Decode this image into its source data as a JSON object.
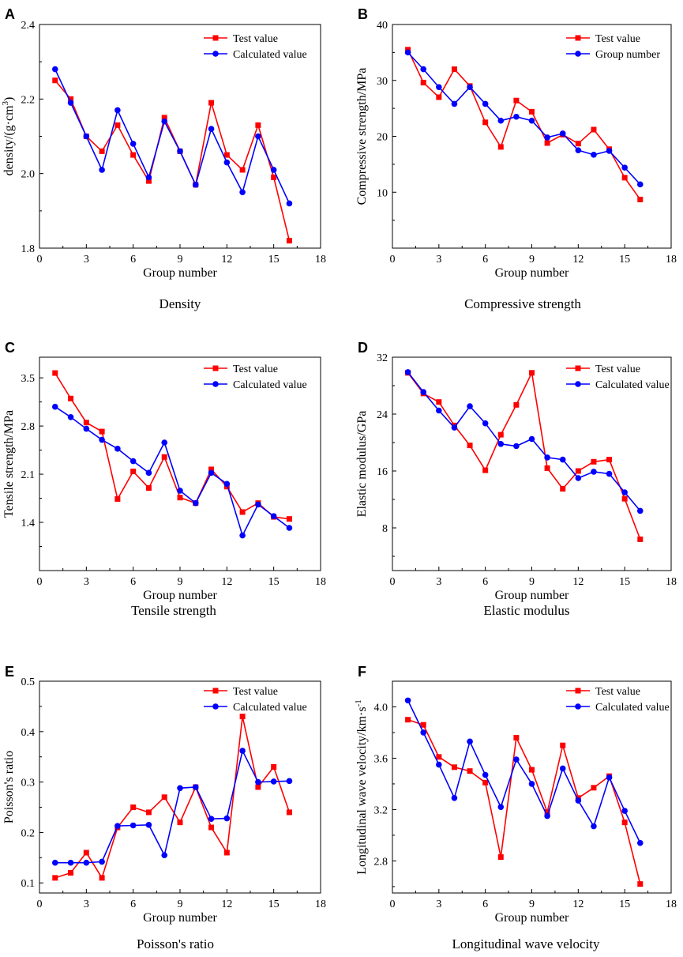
{
  "chart_data": [
    {
      "type": "line",
      "panel": "A",
      "caption": "Density",
      "xlabel": "Group number",
      "ylabel": "density/(g·cm",
      "ylabel_sup": "3",
      "ylabel_end": ")",
      "xlim": [
        0,
        18
      ],
      "ylim": [
        1.8,
        2.4
      ],
      "xticks": [
        0,
        3,
        6,
        9,
        12,
        15,
        18
      ],
      "yticks": [
        1.8,
        2.0,
        2.2,
        2.4
      ],
      "yticklabels": [
        "1.8",
        "2.0",
        "2.2",
        "2.4"
      ],
      "x": [
        1,
        2,
        3,
        4,
        5,
        6,
        7,
        8,
        9,
        10,
        11,
        12,
        13,
        14,
        15,
        16
      ],
      "series": [
        {
          "name": "Test value",
          "color": "#ff0000",
          "marker": "square",
          "values": [
            2.25,
            2.2,
            2.1,
            2.06,
            2.13,
            2.05,
            1.98,
            2.15,
            2.06,
            1.97,
            2.19,
            2.05,
            2.01,
            2.13,
            1.99,
            1.82
          ]
        },
        {
          "name": "Calculated value",
          "color": "#0000ff",
          "marker": "circle",
          "values": [
            2.28,
            2.19,
            2.1,
            2.01,
            2.17,
            2.08,
            1.99,
            2.14,
            2.06,
            1.97,
            2.12,
            2.03,
            1.95,
            2.1,
            2.01,
            1.92
          ]
        }
      ]
    },
    {
      "type": "line",
      "panel": "B",
      "caption": "Compressive strength",
      "xlabel": "Group number",
      "ylabel": "Compressive strength/MPa",
      "ylabel_sup": "",
      "ylabel_end": "",
      "xlim": [
        0,
        18
      ],
      "ylim": [
        0,
        40
      ],
      "xticks": [
        0,
        3,
        6,
        9,
        12,
        15,
        18
      ],
      "yticks": [
        10,
        20,
        30,
        40
      ],
      "yticklabels": [
        "10",
        "20",
        "30",
        "40"
      ],
      "x": [
        1,
        2,
        3,
        4,
        5,
        6,
        7,
        8,
        9,
        10,
        11,
        12,
        13,
        14,
        15,
        16
      ],
      "series": [
        {
          "name": "Test value",
          "color": "#ff0000",
          "marker": "square",
          "values": [
            35.5,
            29.6,
            27.0,
            32.0,
            29.0,
            22.5,
            18.1,
            26.4,
            24.4,
            18.8,
            20.3,
            18.7,
            21.2,
            17.7,
            12.6,
            8.7
          ]
        },
        {
          "name": "Group number",
          "color": "#0000ff",
          "marker": "circle",
          "values": [
            35.0,
            32.0,
            28.8,
            25.8,
            28.8,
            25.8,
            22.8,
            23.5,
            22.8,
            19.8,
            20.5,
            17.5,
            16.7,
            17.4,
            14.4,
            11.4
          ]
        }
      ]
    },
    {
      "type": "line",
      "panel": "C",
      "caption": "Tensile strength",
      "xlabel": "Group number",
      "ylabel": "Tensile strength/MPa",
      "ylabel_sup": "",
      "ylabel_end": "",
      "xlim": [
        0,
        18
      ],
      "ylim": [
        0.7,
        3.8
      ],
      "xticks": [
        0,
        3,
        6,
        9,
        12,
        15,
        18
      ],
      "yticks": [
        1.4,
        2.1,
        2.8,
        3.5
      ],
      "yticklabels": [
        "1.4",
        "2.1",
        "2.8",
        "3.5"
      ],
      "x": [
        1,
        2,
        3,
        4,
        5,
        6,
        7,
        8,
        9,
        10,
        11,
        12,
        13,
        14,
        15,
        16
      ],
      "series": [
        {
          "name": "Test value",
          "color": "#ff0000",
          "marker": "square",
          "values": [
            3.57,
            3.2,
            2.85,
            2.72,
            1.74,
            2.14,
            1.9,
            2.35,
            1.76,
            1.68,
            2.17,
            1.92,
            1.55,
            1.68,
            1.48,
            1.45
          ]
        },
        {
          "name": "Calculated value",
          "color": "#0000ff",
          "marker": "circle",
          "values": [
            3.08,
            2.93,
            2.76,
            2.6,
            2.47,
            2.29,
            2.12,
            2.56,
            1.86,
            1.68,
            2.12,
            1.96,
            1.21,
            1.66,
            1.49,
            1.32
          ]
        }
      ]
    },
    {
      "type": "line",
      "panel": "D",
      "caption": "Elastic modulus",
      "xlabel": "Group number",
      "ylabel": "Elastic modulus/GPa",
      "ylabel_sup": "",
      "ylabel_end": "",
      "xlim": [
        0,
        18
      ],
      "ylim": [
        2,
        32
      ],
      "xticks": [
        0,
        3,
        6,
        9,
        12,
        15,
        18
      ],
      "yticks": [
        8,
        16,
        24,
        32
      ],
      "yticklabels": [
        "8",
        "16",
        "24",
        "32"
      ],
      "x": [
        1,
        2,
        3,
        4,
        5,
        6,
        7,
        8,
        9,
        10,
        11,
        12,
        13,
        14,
        15,
        16
      ],
      "series": [
        {
          "name": "Test value",
          "color": "#ff0000",
          "marker": "square",
          "values": [
            29.8,
            26.9,
            25.7,
            22.4,
            19.6,
            16.1,
            21.1,
            25.3,
            29.8,
            16.4,
            13.5,
            16.0,
            17.3,
            17.6,
            12.1,
            6.4
          ]
        },
        {
          "name": "Calculated value",
          "color": "#0000ff",
          "marker": "circle",
          "values": [
            29.9,
            27.1,
            24.5,
            22.1,
            25.1,
            22.7,
            19.8,
            19.5,
            20.5,
            17.9,
            17.6,
            15.0,
            15.9,
            15.6,
            13.0,
            10.4
          ]
        }
      ]
    },
    {
      "type": "line",
      "panel": "E",
      "caption": "Poisson's ratio",
      "xlabel": "Group number",
      "ylabel": "Poisson's ratio",
      "ylabel_sup": "",
      "ylabel_end": "",
      "xlim": [
        0,
        18
      ],
      "ylim": [
        0.08,
        0.5
      ],
      "xticks": [
        0,
        3,
        6,
        9,
        12,
        15,
        18
      ],
      "yticks": [
        0.1,
        0.2,
        0.3,
        0.4,
        0.5
      ],
      "yticklabels": [
        "0.1",
        "0.2",
        "0.3",
        "0.4",
        "0.5"
      ],
      "x": [
        1,
        2,
        3,
        4,
        5,
        6,
        7,
        8,
        9,
        10,
        11,
        12,
        13,
        14,
        15,
        16
      ],
      "series": [
        {
          "name": "Test value",
          "color": "#ff0000",
          "marker": "square",
          "values": [
            0.11,
            0.12,
            0.16,
            0.11,
            0.21,
            0.25,
            0.24,
            0.27,
            0.22,
            0.29,
            0.21,
            0.16,
            0.43,
            0.29,
            0.33,
            0.24
          ]
        },
        {
          "name": "Calculated value",
          "color": "#0000ff",
          "marker": "circle",
          "values": [
            0.14,
            0.14,
            0.14,
            0.142,
            0.213,
            0.214,
            0.215,
            0.155,
            0.288,
            0.29,
            0.227,
            0.228,
            0.362,
            0.3,
            0.301,
            0.302
          ]
        }
      ]
    },
    {
      "type": "line",
      "panel": "F",
      "caption": "Longitudinal wave velocity",
      "xlabel": "Group number",
      "ylabel": "Longitudinal wave velocity/km·s",
      "ylabel_sup": "-1",
      "ylabel_end": "",
      "xlim": [
        0,
        18
      ],
      "ylim": [
        2.55,
        4.2
      ],
      "xticks": [
        0,
        3,
        6,
        9,
        12,
        15,
        18
      ],
      "yticks": [
        2.8,
        3.2,
        3.6,
        4.0
      ],
      "yticklabels": [
        "2.8",
        "3.2",
        "3.6",
        "4.0"
      ],
      "x": [
        1,
        2,
        3,
        4,
        5,
        6,
        7,
        8,
        9,
        10,
        11,
        12,
        13,
        14,
        15,
        16
      ],
      "series": [
        {
          "name": "Test value",
          "color": "#ff0000",
          "marker": "square",
          "values": [
            3.9,
            3.86,
            3.61,
            3.53,
            3.5,
            3.41,
            2.83,
            3.76,
            3.51,
            3.18,
            3.7,
            3.29,
            3.37,
            3.46,
            3.1,
            2.62
          ]
        },
        {
          "name": "Calculated value",
          "color": "#0000ff",
          "marker": "circle",
          "values": [
            4.05,
            3.8,
            3.55,
            3.29,
            3.73,
            3.47,
            3.22,
            3.59,
            3.4,
            3.15,
            3.52,
            3.27,
            3.07,
            3.45,
            3.19,
            2.94
          ]
        }
      ]
    }
  ]
}
